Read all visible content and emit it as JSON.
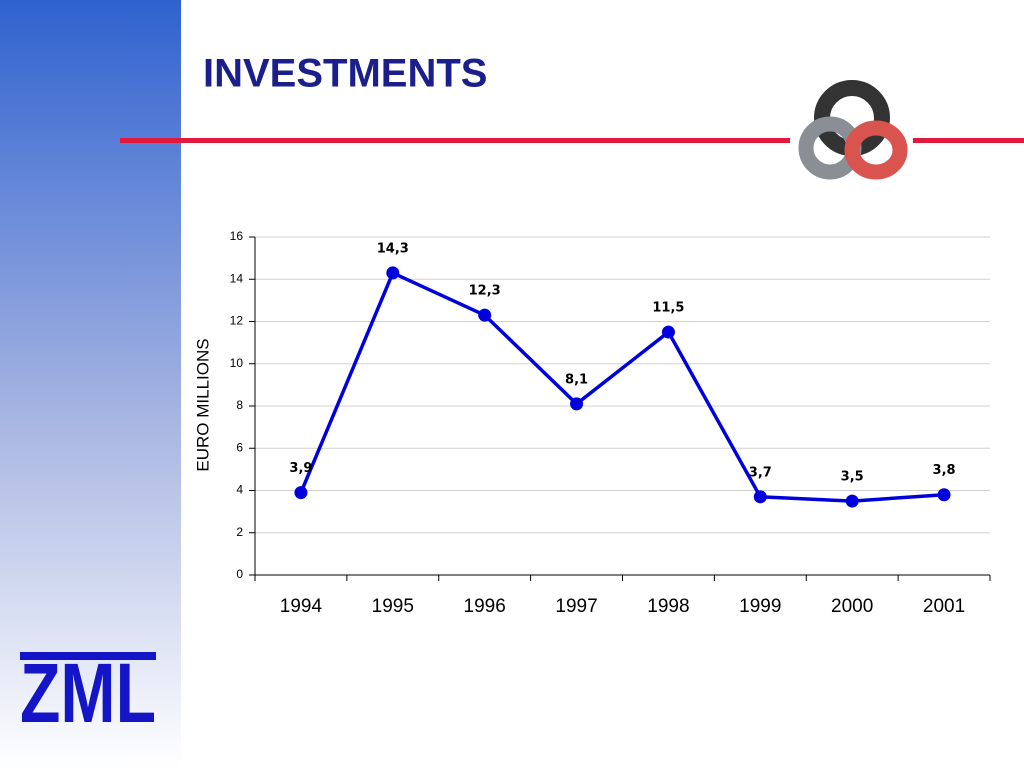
{
  "logo": "ZML",
  "chart_data": {
    "type": "line",
    "title": "INVESTMENTS",
    "ylabel": "EURO MILLIONS",
    "categories": [
      "1994",
      "1995",
      "1996",
      "1997",
      "1998",
      "1999",
      "2000",
      "2001"
    ],
    "series": [
      {
        "name": "Investments",
        "color": "#0000dd",
        "values": [
          3.9,
          14.3,
          12.3,
          8.1,
          11.5,
          3.7,
          3.5,
          3.8
        ],
        "value_labels": [
          "3,9",
          "14,3",
          "12,3",
          "8,1",
          "11,5",
          "3,7",
          "3,5",
          "3,8"
        ]
      }
    ],
    "ylim": [
      0,
      16
    ],
    "yticks": [
      0,
      2,
      4,
      6,
      8,
      10,
      12,
      14,
      16
    ],
    "grid": true
  }
}
